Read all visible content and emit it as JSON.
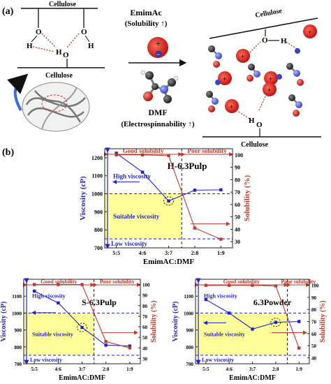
{
  "panel_a": {
    "label": "(a)",
    "cellulose_left_top": "Cellulose",
    "cellulose_left_bottom": "Cellulose",
    "cellulose_right_top": "Cellulose",
    "cellulose_right_bottom": "Cellulose",
    "atom_O": "O",
    "atom_H": "H",
    "emimac_title": "EmimAc",
    "emimac_subtitle": "(Solubility ↑)",
    "dmf_title": "DMF",
    "dmf_subtitle": "(Electrospinnability ↑)",
    "plus": "+",
    "minus": "−"
  },
  "panel_b": {
    "label": "(b)"
  },
  "colors": {
    "viscosity": "#1f1fd6",
    "solubility": "#c0392b",
    "highlight": "#ffff99",
    "ion_red": "#e0201c"
  },
  "chart_data": [
    {
      "type": "line",
      "title": "H-6.3Pulp",
      "xlabel": "EmimAC:DMF",
      "ylabel_left": "Viscosity (cP)",
      "ylabel_right": "Solubility (%)",
      "categories": [
        "5:5",
        "4:6",
        "3:7",
        "2:8",
        "1:9"
      ],
      "ylim_left": [
        700,
        1250
      ],
      "yticks_left": [
        700,
        800,
        900,
        1000,
        1100,
        1200
      ],
      "ylim_right": [
        25,
        105
      ],
      "yticks_right": [
        30,
        40,
        50,
        60,
        70,
        80,
        90,
        100
      ],
      "series": [
        {
          "axis": "left",
          "values": [
            1225,
            1120,
            960,
            1020,
            1022
          ]
        },
        {
          "axis": "right",
          "values": [
            100,
            100,
            99.5,
            41,
            32
          ]
        }
      ],
      "region_good": "Good solubility",
      "region_poor": "Poor solubility",
      "ann_high": "High viscosity",
      "ann_suitable": "Suitable viscosity",
      "ann_low": "Low viscosity",
      "visc_upper": 1000,
      "visc_lower": 750,
      "split_after_index": 2
    },
    {
      "type": "line",
      "title": "S-6.3Pulp",
      "xlabel": "EmimAC:DMF",
      "ylabel_left": "Viscosity (cP)",
      "ylabel_right": "Solubility (%)",
      "categories": [
        "5:5",
        "4:6",
        "3:7",
        "2:8",
        "1:9"
      ],
      "ylim_left": [
        700,
        1200
      ],
      "yticks_left": [
        700,
        800,
        900,
        1000,
        1100
      ],
      "ylim_right": [
        25,
        105
      ],
      "yticks_right": [
        30,
        40,
        50,
        60,
        70,
        80,
        90,
        100
      ],
      "series": [
        {
          "axis": "left",
          "values": [
            1130,
            1060,
            915,
            810,
            805
          ]
        },
        {
          "axis": "right",
          "values": [
            100,
            100,
            100,
            46,
            40
          ]
        }
      ],
      "region_good": "Good solubility",
      "region_poor": "Poor solubility",
      "ann_high": "High viscosity",
      "ann_suitable": "Suitable viscosity",
      "ann_low": "Low viscosity",
      "visc_upper": 1000,
      "visc_lower": 750,
      "split_after_index": 2
    },
    {
      "type": "line",
      "title": "6.3Powder",
      "xlabel": "EmimAC:DMF",
      "ylabel_left": "Viscosity (cP)",
      "ylabel_right": "Solubility (%)",
      "categories": [
        "5:5",
        "4:6",
        "3:7",
        "2:8",
        "1:9"
      ],
      "ylim_left": [
        700,
        1200
      ],
      "yticks_left": [
        700,
        800,
        900,
        1000,
        1100
      ],
      "ylim_right": [
        35,
        105
      ],
      "yticks_right": [
        40,
        50,
        60,
        70,
        80,
        90,
        100
      ],
      "series": [
        {
          "axis": "left",
          "values": [
            1080,
            1000,
            905,
            945,
            950
          ]
        },
        {
          "axis": "right",
          "values": [
            100,
            100,
            100,
            99.5,
            48
          ]
        }
      ],
      "region_good": "Good solubility",
      "region_poor": "Poor solubility",
      "ann_high": "High viscosity",
      "ann_suitable": "Suitable viscosity",
      "ann_low": "Low viscosity",
      "visc_upper": 1000,
      "visc_lower": 750,
      "split_after_index": 3
    }
  ]
}
